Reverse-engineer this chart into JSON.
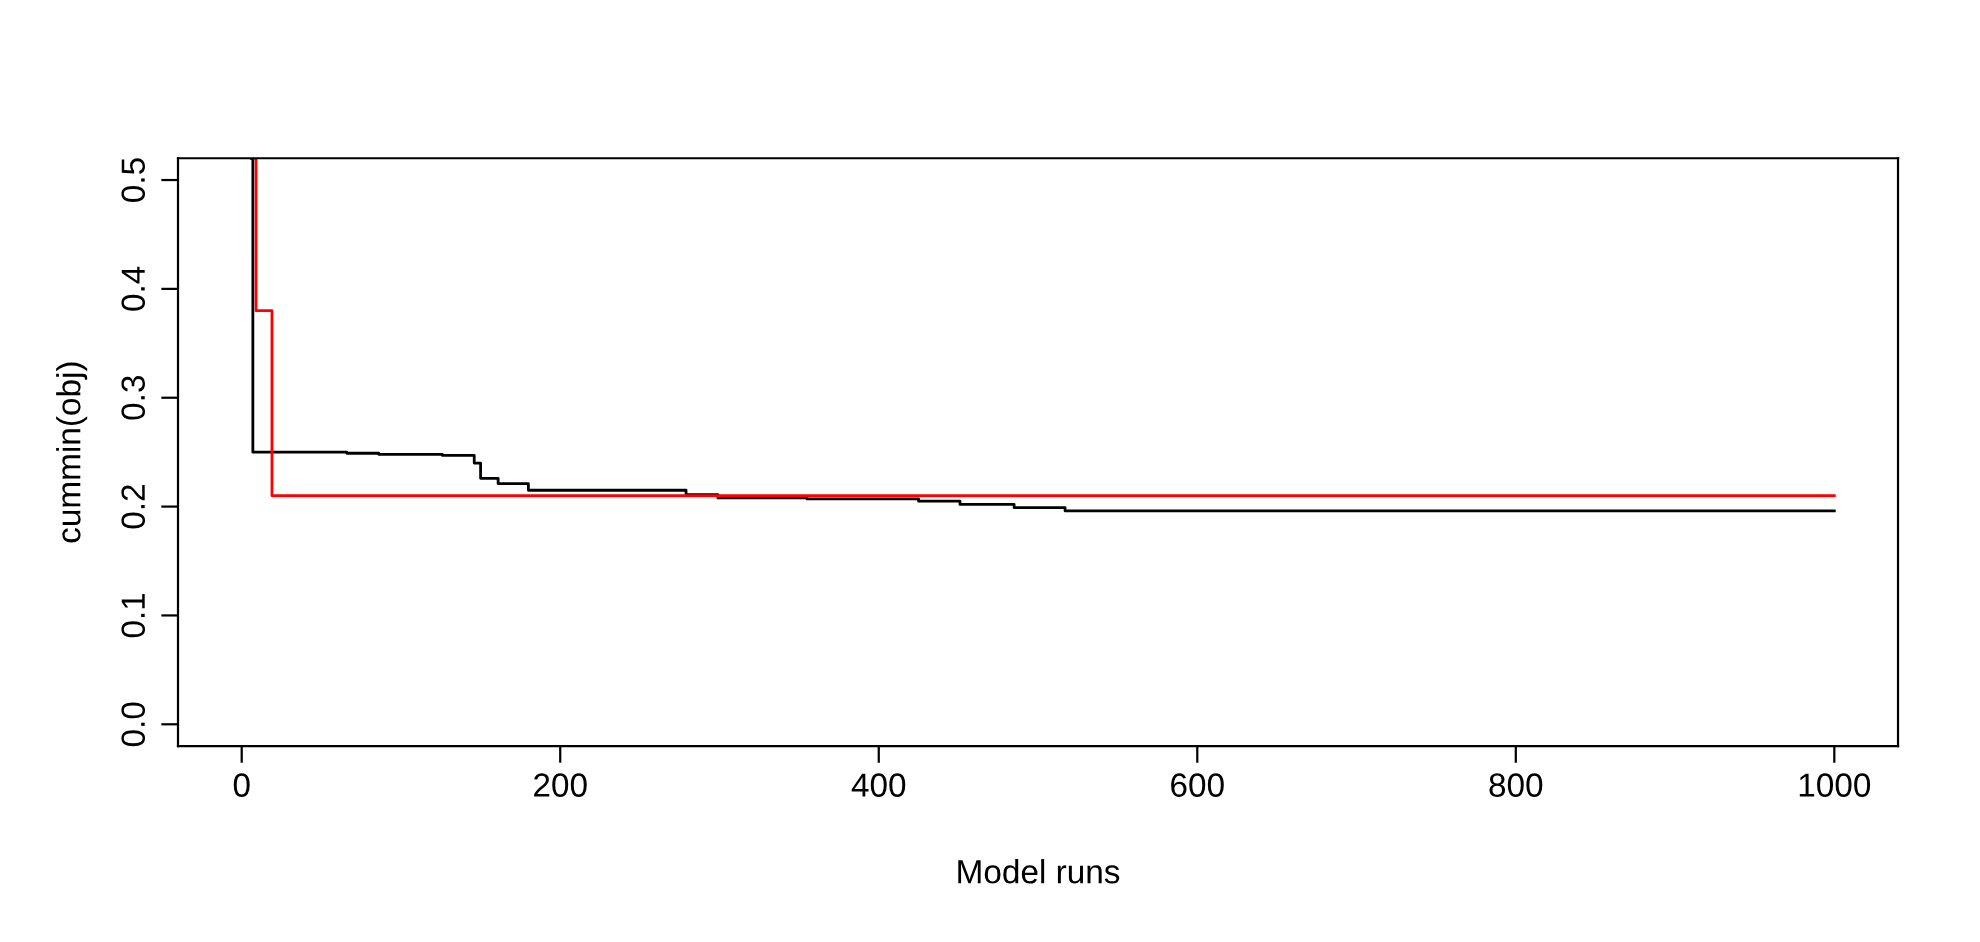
{
  "chart_data": {
    "type": "step",
    "xlabel": "Model runs",
    "ylabel": "cummin(obj)",
    "xlim": [
      -40,
      1040
    ],
    "ylim": [
      -0.02,
      0.52
    ],
    "xticks": [
      0,
      200,
      400,
      600,
      800,
      1000
    ],
    "yticks": [
      {
        "value": 0,
        "label": "0.0"
      },
      0.1,
      0.2,
      0.3,
      0.4,
      0.5
    ],
    "grid": false,
    "legend": false,
    "series": [
      {
        "color": "#000000",
        "x": [
          6,
          7,
          66,
          86,
          126,
          146,
          150,
          161,
          180,
          279,
          299,
          355,
          425,
          451,
          485,
          517,
          1000
        ],
        "values": [
          0.52,
          0.25,
          0.249,
          0.248,
          0.247,
          0.24,
          0.226,
          0.221,
          0.215,
          0.211,
          0.208,
          0.207,
          0.205,
          0.202,
          0.199,
          0.196,
          0.196
        ]
      },
      {
        "color": "#ff0000",
        "x": [
          8,
          9,
          19,
          1000
        ],
        "values": [
          0.52,
          0.38,
          0.21,
          0.21
        ]
      }
    ]
  }
}
